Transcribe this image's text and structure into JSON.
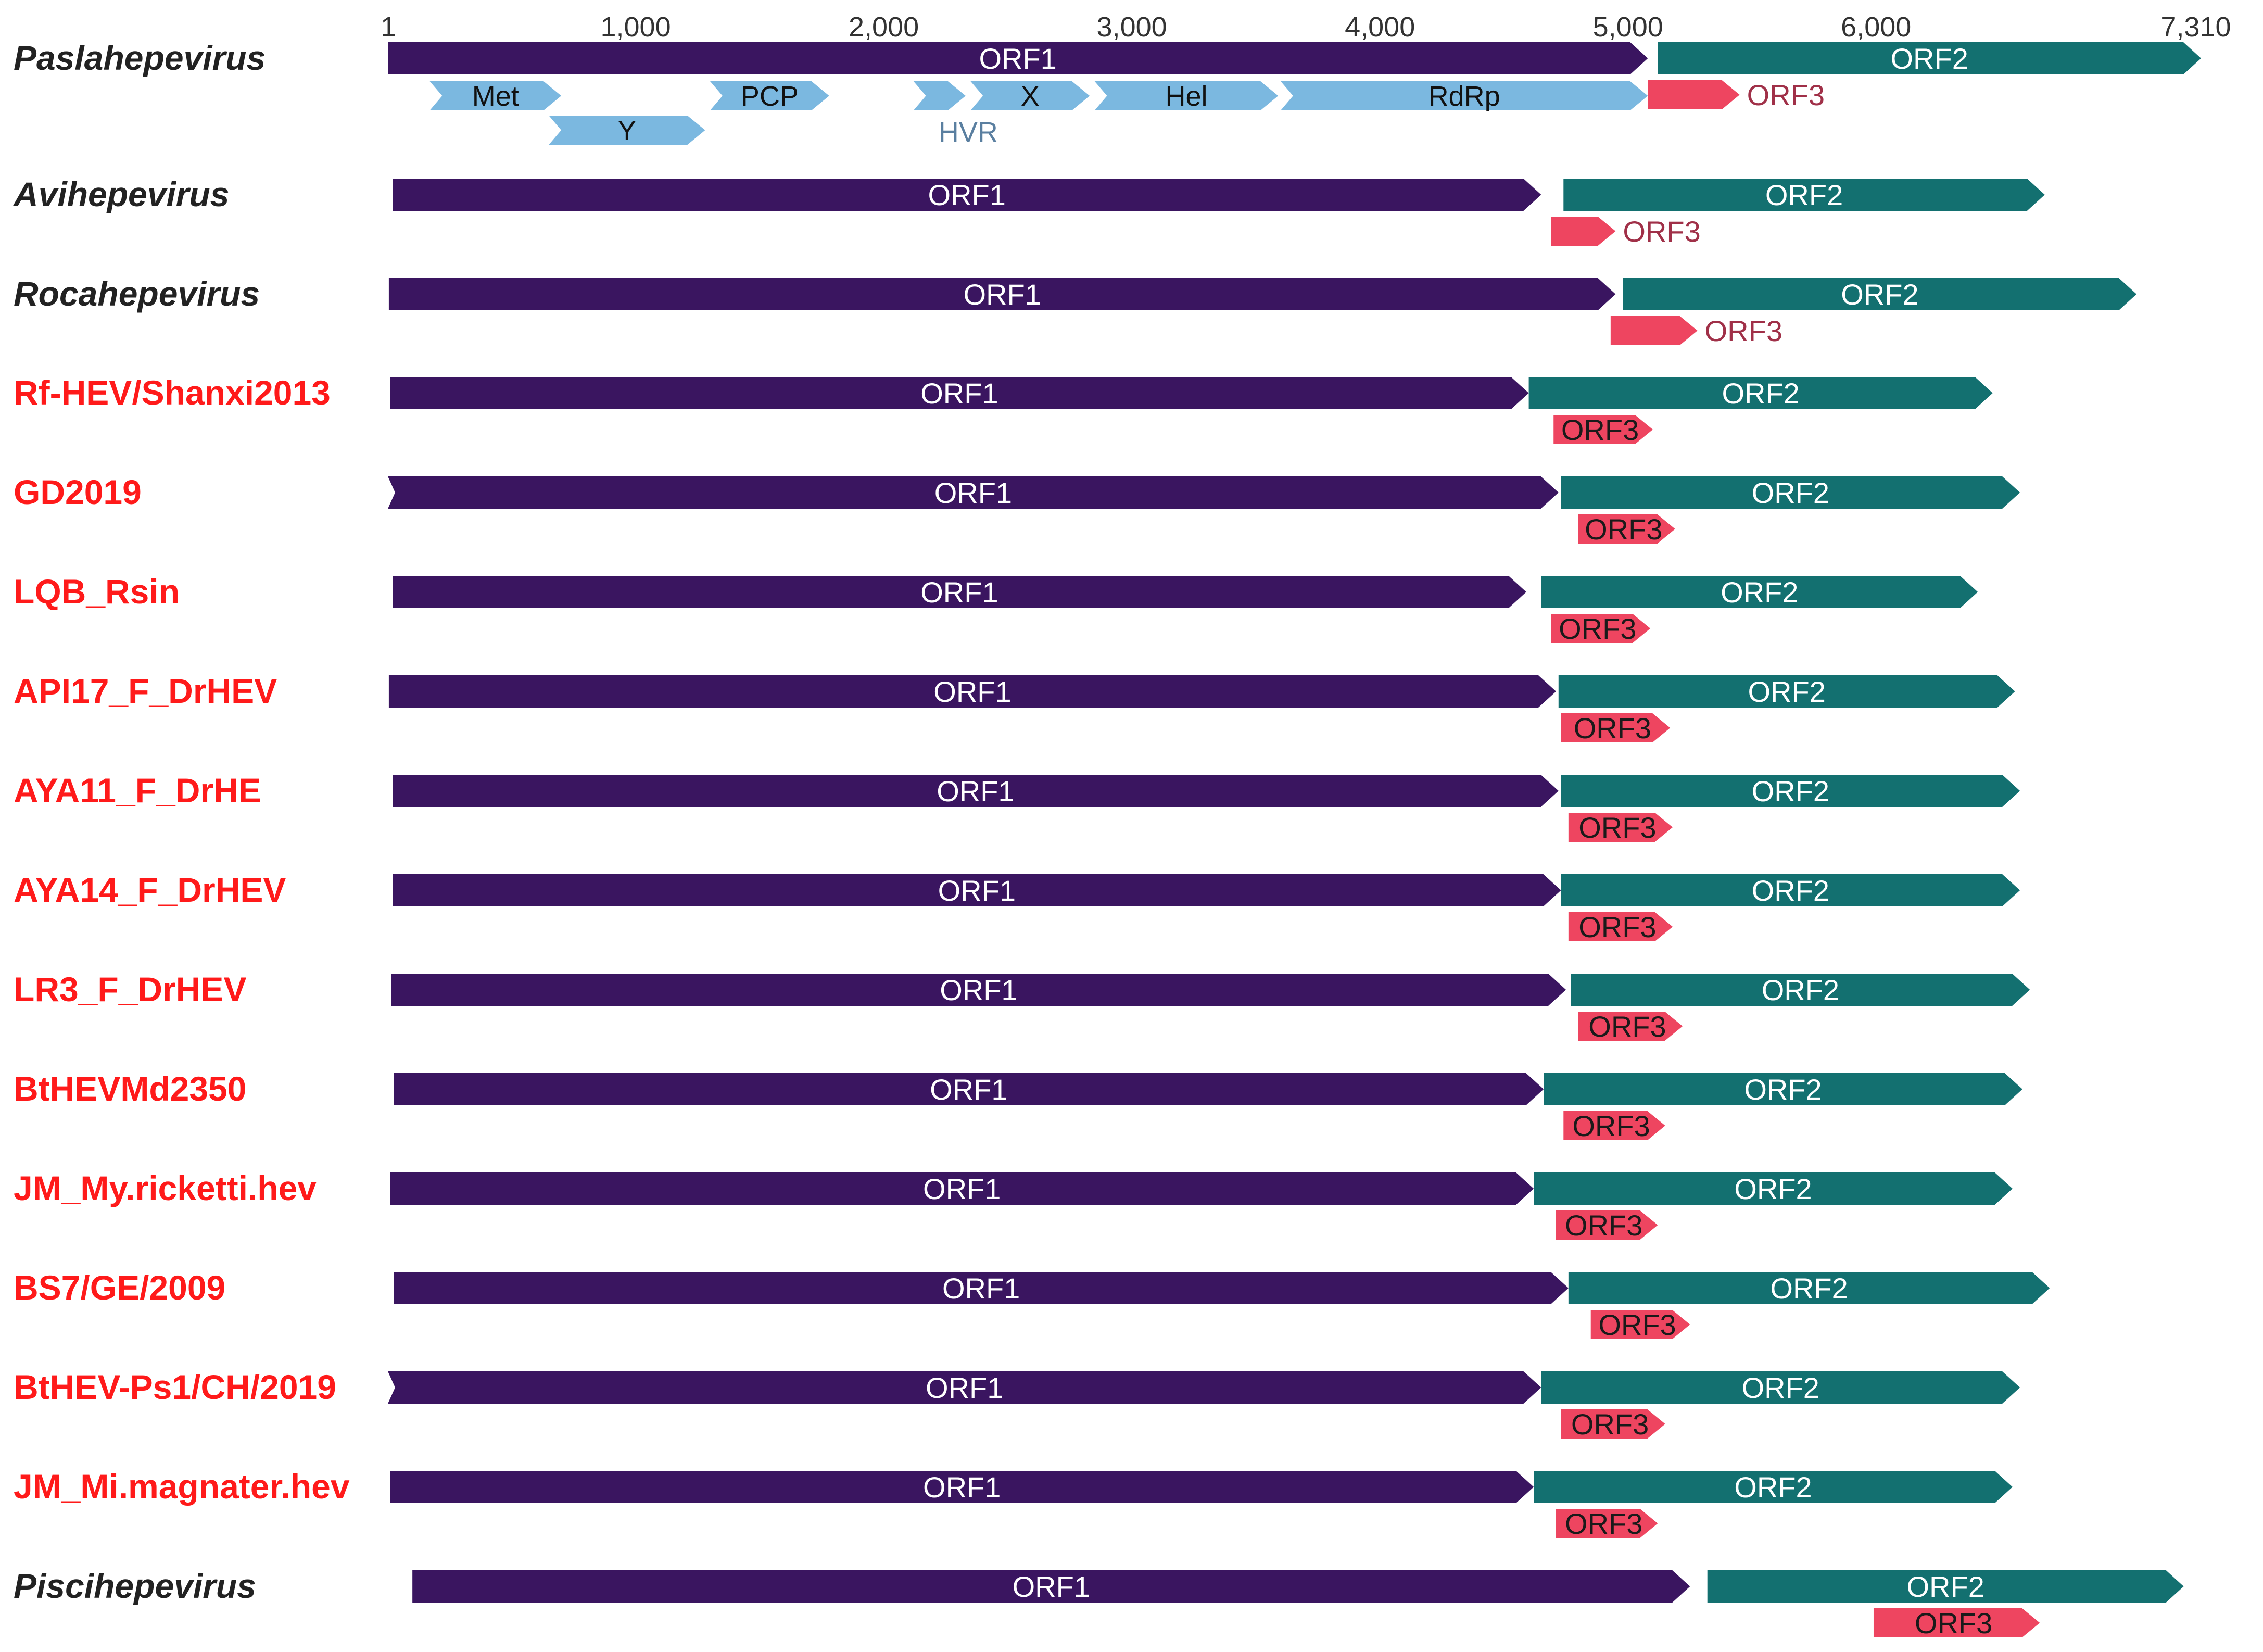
{
  "colors": {
    "orf1": "#3a1560",
    "orf2": "#137070",
    "orf3": "#ee4560",
    "domain": "#7bb8e0",
    "reference_name": "#222222",
    "novel_name": "#ff1a1a",
    "hvr_label": "#5a7fa0",
    "orf3_outside_label": "#a03048"
  },
  "scale": {
    "min": 1,
    "max": 7310,
    "ticks": [
      {
        "value": 1,
        "label": "1"
      },
      {
        "value": 1000,
        "label": "1,000"
      },
      {
        "value": 2000,
        "label": "2,000"
      },
      {
        "value": 3000,
        "label": "3,000"
      },
      {
        "value": 4000,
        "label": "4,000"
      },
      {
        "value": 5000,
        "label": "5,000"
      },
      {
        "value": 6000,
        "label": "6,000"
      },
      {
        "value": 7310,
        "label": "7,310"
      }
    ]
  },
  "domains": [
    {
      "name": "Met",
      "label": "Met",
      "start": 170,
      "end": 700,
      "row": 0
    },
    {
      "name": "Y",
      "label": "Y",
      "start": 650,
      "end": 1280,
      "row": 1
    },
    {
      "name": "PCP",
      "label": "PCP",
      "start": 1300,
      "end": 1780,
      "row": 0
    },
    {
      "name": "HVR",
      "label": "",
      "start": 2120,
      "end": 2330,
      "row": 0
    },
    {
      "name": "X",
      "label": "X",
      "start": 2350,
      "end": 2830,
      "row": 0
    },
    {
      "name": "Hel",
      "label": "Hel",
      "start": 2850,
      "end": 3590,
      "row": 0
    },
    {
      "name": "RdRp",
      "label": "RdRp",
      "start": 3600,
      "end": 5080,
      "row": 0
    }
  ],
  "hvr_label": "HVR",
  "genomes": [
    {
      "name": "Paslahepevirus",
      "style": "reference",
      "orf1": {
        "label": "ORF1",
        "start": 1,
        "end": 5080
      },
      "orf2": {
        "label": "ORF2",
        "start": 5120,
        "end": 7310
      },
      "orf3": {
        "label": "ORF3",
        "start": 5080,
        "end": 5450,
        "label_outside": true
      }
    },
    {
      "name": "Avihepevirus",
      "style": "reference",
      "orf1": {
        "label": "ORF1",
        "start": 20,
        "end": 4650
      },
      "orf2": {
        "label": "ORF2",
        "start": 4740,
        "end": 6680
      },
      "orf3": {
        "label": "ORF3",
        "start": 4690,
        "end": 4950,
        "label_outside": true
      }
    },
    {
      "name": "Rocahepevirus",
      "style": "reference",
      "orf1": {
        "label": "ORF1",
        "start": 5,
        "end": 4950
      },
      "orf2": {
        "label": "ORF2",
        "start": 4980,
        "end": 7050
      },
      "orf3": {
        "label": "ORF3",
        "start": 4930,
        "end": 5280,
        "label_outside": true
      }
    },
    {
      "name": "Rf-HEV/Shanxi2013",
      "style": "novel",
      "orf1": {
        "label": "ORF1",
        "start": 10,
        "end": 4600
      },
      "orf2": {
        "label": "ORF2",
        "start": 4600,
        "end": 6470
      },
      "orf3": {
        "label": "ORF3",
        "start": 4700,
        "end": 5100,
        "label_outside": false
      }
    },
    {
      "name": "GD2019",
      "style": "novel",
      "orf1": {
        "label": "ORF1",
        "start": 1,
        "end": 4720,
        "notched": true
      },
      "orf2": {
        "label": "ORF2",
        "start": 4730,
        "end": 6580
      },
      "orf3": {
        "label": "ORF3",
        "start": 4800,
        "end": 5190,
        "label_outside": false
      }
    },
    {
      "name": "LQB_Rsin",
      "style": "novel",
      "orf1": {
        "label": "ORF1",
        "start": 20,
        "end": 4590
      },
      "orf2": {
        "label": "ORF2",
        "start": 4650,
        "end": 6410
      },
      "orf3": {
        "label": "ORF3",
        "start": 4690,
        "end": 5090,
        "label_outside": false
      }
    },
    {
      "name": "API17_F_DrHEV",
      "style": "novel",
      "orf1": {
        "label": "ORF1",
        "start": 5,
        "end": 4710
      },
      "orf2": {
        "label": "ORF2",
        "start": 4720,
        "end": 6560
      },
      "orf3": {
        "label": "ORF3",
        "start": 4730,
        "end": 5170,
        "label_outside": false
      }
    },
    {
      "name": "AYA11_F_DrHE",
      "style": "novel",
      "orf1": {
        "label": "ORF1",
        "start": 20,
        "end": 4720
      },
      "orf2": {
        "label": "ORF2",
        "start": 4730,
        "end": 6580
      },
      "orf3": {
        "label": "ORF3",
        "start": 4760,
        "end": 5180,
        "label_outside": false
      }
    },
    {
      "name": "AYA14_F_DrHEV",
      "style": "novel",
      "orf1": {
        "label": "ORF1",
        "start": 20,
        "end": 4730
      },
      "orf2": {
        "label": "ORF2",
        "start": 4730,
        "end": 6580
      },
      "orf3": {
        "label": "ORF3",
        "start": 4760,
        "end": 5180,
        "label_outside": false
      }
    },
    {
      "name": "LR3_F_DrHEV",
      "style": "novel",
      "orf1": {
        "label": "ORF1",
        "start": 15,
        "end": 4750
      },
      "orf2": {
        "label": "ORF2",
        "start": 4770,
        "end": 6620
      },
      "orf3": {
        "label": "ORF3",
        "start": 4800,
        "end": 5220,
        "label_outside": false
      }
    },
    {
      "name": "BtHEVMd2350",
      "style": "novel",
      "orf1": {
        "label": "ORF1",
        "start": 25,
        "end": 4660
      },
      "orf2": {
        "label": "ORF2",
        "start": 4660,
        "end": 6590
      },
      "orf3": {
        "label": "ORF3",
        "start": 4740,
        "end": 5150,
        "label_outside": false
      }
    },
    {
      "name": "JM_My.ricketti.hev",
      "style": "novel",
      "orf1": {
        "label": "ORF1",
        "start": 10,
        "end": 4620
      },
      "orf2": {
        "label": "ORF2",
        "start": 4620,
        "end": 6550
      },
      "orf3": {
        "label": "ORF3",
        "start": 4710,
        "end": 5120,
        "label_outside": false
      }
    },
    {
      "name": "BS7/GE/2009",
      "style": "novel",
      "orf1": {
        "label": "ORF1",
        "start": 25,
        "end": 4760
      },
      "orf2": {
        "label": "ORF2",
        "start": 4760,
        "end": 6700
      },
      "orf3": {
        "label": "ORF3",
        "start": 4850,
        "end": 5250,
        "label_outside": false
      }
    },
    {
      "name": "BtHEV-Ps1/CH/2019",
      "style": "novel",
      "orf1": {
        "label": "ORF1",
        "start": 1,
        "end": 4650,
        "notched": true
      },
      "orf2": {
        "label": "ORF2",
        "start": 4650,
        "end": 6580
      },
      "orf3": {
        "label": "ORF3",
        "start": 4730,
        "end": 5150,
        "label_outside": false
      }
    },
    {
      "name": "JM_Mi.magnater.hev",
      "style": "novel",
      "orf1": {
        "label": "ORF1",
        "start": 10,
        "end": 4620
      },
      "orf2": {
        "label": "ORF2",
        "start": 4620,
        "end": 6550
      },
      "orf3": {
        "label": "ORF3",
        "start": 4710,
        "end": 5120,
        "label_outside": false
      }
    },
    {
      "name": "Piscihepevirus",
      "style": "reference",
      "orf1": {
        "label": "ORF1",
        "start": 100,
        "end": 5250
      },
      "orf2": {
        "label": "ORF2",
        "start": 5320,
        "end": 7240
      },
      "orf3": {
        "label": "ORF3",
        "start": 5990,
        "end": 6660,
        "label_outside": false
      }
    }
  ]
}
